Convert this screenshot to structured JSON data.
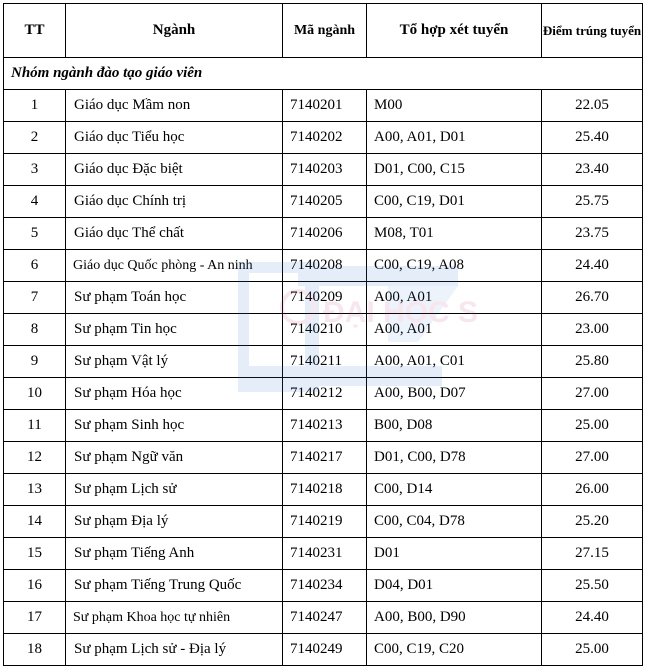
{
  "headers": {
    "tt": "TT",
    "nganh": "Ngành",
    "ma_nganh": "Mã ngành",
    "to_hop": "Tổ hợp xét tuyển",
    "diem": "Điểm trúng tuyển"
  },
  "group_title": "Nhóm ngành đào tạo giáo viên",
  "rows": [
    {
      "tt": "1",
      "name": "Giáo dục Mầm non",
      "code": "7140201",
      "combo": "M00",
      "score": "22.05"
    },
    {
      "tt": "2",
      "name": "Giáo dục Tiểu học",
      "code": "7140202",
      "combo": "A00, A01, D01",
      "score": "25.40"
    },
    {
      "tt": "3",
      "name": "Giáo dục Đặc biệt",
      "code": "7140203",
      "combo": "D01, C00, C15",
      "score": "23.40"
    },
    {
      "tt": "4",
      "name": "Giáo dục Chính trị",
      "code": "7140205",
      "combo": "C00, C19, D01",
      "score": "25.75"
    },
    {
      "tt": "5",
      "name": "Giáo dục Thể chất",
      "code": "7140206",
      "combo": "M08, T01",
      "score": "23.75"
    },
    {
      "tt": "6",
      "name": "Giáo dục Quốc phòng - An ninh",
      "code": "7140208",
      "combo": "C00, C19, A08",
      "score": "24.40"
    },
    {
      "tt": "7",
      "name": "Sư phạm Toán học",
      "code": "7140209",
      "combo": "A00, A01",
      "score": "26.70"
    },
    {
      "tt": "8",
      "name": "Sư phạm Tin học",
      "code": "7140210",
      "combo": "A00, A01",
      "score": "23.00"
    },
    {
      "tt": "9",
      "name": "Sư phạm Vật lý",
      "code": "7140211",
      "combo": "A00, A01, C01",
      "score": "25.80"
    },
    {
      "tt": "10",
      "name": "Sư phạm Hóa học",
      "code": "7140212",
      "combo": "A00, B00, D07",
      "score": "27.00"
    },
    {
      "tt": "11",
      "name": "Sư phạm Sinh học",
      "code": "7140213",
      "combo": "B00, D08",
      "score": "25.00"
    },
    {
      "tt": "12",
      "name": "Sư phạm Ngữ văn",
      "code": "7140217",
      "combo": "D01, C00, D78",
      "score": "27.00"
    },
    {
      "tt": "13",
      "name": "Sư phạm Lịch sử",
      "code": "7140218",
      "combo": "C00, D14",
      "score": "26.00"
    },
    {
      "tt": "14",
      "name": "Sư phạm Địa lý",
      "code": "7140219",
      "combo": "C00, C04, D78",
      "score": "25.20"
    },
    {
      "tt": "15",
      "name": "Sư phạm Tiếng Anh",
      "code": "7140231",
      "combo": "D01",
      "score": "27.15"
    },
    {
      "tt": "16",
      "name": "Sư phạm Tiếng Trung Quốc",
      "code": "7140234",
      "combo": "D04, D01",
      "score": "25.50"
    },
    {
      "tt": "17",
      "name": "Sư phạm Khoa học tự nhiên",
      "code": "7140247",
      "combo": "A00, B00, D90",
      "score": "24.40"
    },
    {
      "tt": "18",
      "name": "Sư phạm Lịch sử - Địa lý",
      "code": "7140249",
      "combo": "C00, C19, C20",
      "score": "25.00"
    }
  ],
  "watermark": {
    "label": "ĐẠI HỌC SP",
    "color": "#3b7bd0"
  }
}
